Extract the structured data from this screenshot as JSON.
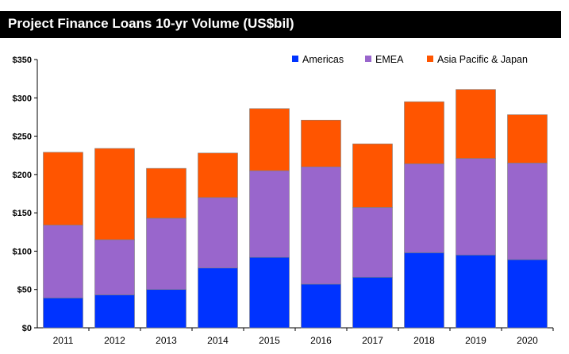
{
  "chart_data": {
    "type": "bar",
    "stacked": true,
    "title": "Project Finance Loans 10-yr Volume (US$bil)",
    "categories": [
      "2011",
      "2012",
      "2013",
      "2014",
      "2015",
      "2016",
      "2017",
      "2018",
      "2019",
      "2020"
    ],
    "series": [
      {
        "name": "Americas",
        "color": "#0033ff",
        "values": [
          39,
          43,
          50,
          78,
          92,
          57,
          66,
          98,
          95,
          89
        ]
      },
      {
        "name": "EMEA",
        "color": "#9966cc",
        "values": [
          95,
          72,
          93,
          92,
          113,
          153,
          91,
          116,
          126,
          126
        ]
      },
      {
        "name": "Asia Pacific & Japan",
        "color": "#ff5500",
        "values": [
          95,
          119,
          65,
          58,
          81,
          61,
          83,
          81,
          90,
          63
        ]
      }
    ],
    "ylim": [
      0,
      350
    ],
    "yticks": [
      0,
      50,
      100,
      150,
      200,
      250,
      300,
      350
    ],
    "ytick_labels": [
      "$0",
      "$50",
      "$100",
      "$150",
      "$200",
      "$250",
      "$300",
      "$350"
    ],
    "grid": false,
    "legend_position": "top-right"
  }
}
